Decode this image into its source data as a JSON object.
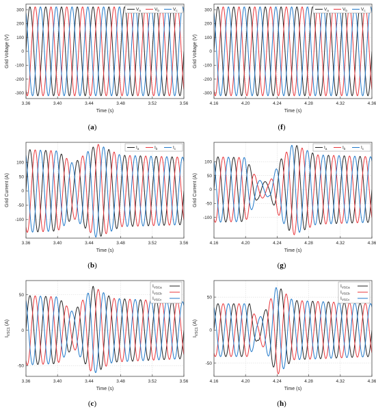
{
  "figure": {
    "panels": [
      {
        "id": "a",
        "caption": "a"
      },
      {
        "id": "f",
        "caption": "f"
      },
      {
        "id": "b",
        "caption": "b"
      },
      {
        "id": "g",
        "caption": "g"
      },
      {
        "id": "c",
        "caption": "c"
      },
      {
        "id": "h",
        "caption": "h"
      }
    ]
  },
  "colors": {
    "phase_a": "#222222",
    "phase_b": "#e8343a",
    "phase_c": "#1f77c8"
  },
  "chart_data": [
    {
      "id": "a",
      "type": "line",
      "title": "",
      "xlabel": "Time (s)",
      "ylabel": "Grid Voltage (V)",
      "xlim": [
        3.36,
        3.56
      ],
      "ylim": [
        -340,
        340
      ],
      "xticks": [
        "3.36",
        "3.40",
        "3.44",
        "3.48",
        "3.52",
        "3.56"
      ],
      "yticks": [
        "-300",
        "-200",
        "-100",
        "0",
        "100",
        "200",
        "300"
      ],
      "grid": true,
      "legend_position": "top-right",
      "legend": [
        {
          "base": "V",
          "sub": "a"
        },
        {
          "base": "V",
          "sub": "b"
        },
        {
          "base": "V",
          "sub": "c"
        }
      ],
      "frequency_hz": 50,
      "series": [
        {
          "phase": "a",
          "amplitude": 320,
          "phase_deg": 0
        },
        {
          "phase": "b",
          "amplitude": 320,
          "phase_deg": -120
        },
        {
          "phase": "c",
          "amplitude": 320,
          "phase_deg": 120
        }
      ]
    },
    {
      "id": "f",
      "type": "line",
      "title": "",
      "xlabel": "Time (s)",
      "ylabel": "Grid Voltage (V)",
      "xlim": [
        4.16,
        4.36
      ],
      "ylim": [
        -340,
        340
      ],
      "xticks": [
        "4.16",
        "4.20",
        "4.24",
        "4.28",
        "4.32",
        "4.36"
      ],
      "yticks": [
        "-300",
        "-200",
        "-100",
        "0",
        "100",
        "200",
        "300"
      ],
      "grid": true,
      "legend_position": "top-right",
      "legend": [
        {
          "base": "V",
          "sub": "a"
        },
        {
          "base": "V",
          "sub": "b"
        },
        {
          "base": "V",
          "sub": "c"
        }
      ],
      "frequency_hz": 50,
      "series": [
        {
          "phase": "a",
          "amplitude": 320,
          "phase_deg": 0
        },
        {
          "phase": "b",
          "amplitude": 320,
          "phase_deg": -120
        },
        {
          "phase": "c",
          "amplitude": 320,
          "phase_deg": 120
        }
      ]
    },
    {
      "id": "b",
      "type": "line",
      "title": "",
      "xlabel": "Time (s)",
      "ylabel": "Grid Current (A)",
      "xlim": [
        3.36,
        3.56
      ],
      "ylim": [
        -165,
        170
      ],
      "xticks": [
        "3.36",
        "3.40",
        "3.44",
        "3.48",
        "3.52",
        "3.56"
      ],
      "yticks": [
        "-100",
        "-50",
        "0",
        "50",
        "100"
      ],
      "grid": true,
      "legend_position": "top-right",
      "legend": [
        {
          "base": "I",
          "sub": "a"
        },
        {
          "base": "I",
          "sub": "b"
        },
        {
          "base": "I",
          "sub": "c"
        }
      ],
      "frequency_hz": 50,
      "amplitude_envelope": {
        "t": [
          3.36,
          3.4,
          3.42,
          3.45,
          3.48,
          3.56
        ],
        "amp": [
          145,
          140,
          95,
          165,
          125,
          118
        ]
      },
      "series": [
        {
          "phase": "a",
          "phase_deg": 0
        },
        {
          "phase": "b",
          "phase_deg": -120
        },
        {
          "phase": "c",
          "phase_deg": 120
        }
      ]
    },
    {
      "id": "g",
      "type": "line",
      "title": "",
      "xlabel": "Time (s)",
      "ylabel": "Grid Current (A)",
      "xlim": [
        4.16,
        4.36
      ],
      "ylim": [
        -175,
        170
      ],
      "xticks": [
        "4.16",
        "4.20",
        "4.24",
        "4.28",
        "4.32",
        "4.36"
      ],
      "yticks": [
        "-100",
        "-50",
        "0",
        "50",
        "100"
      ],
      "grid": true,
      "legend_position": "top-right",
      "legend": [
        {
          "base": "I",
          "sub": "a"
        },
        {
          "base": "I",
          "sub": "b"
        },
        {
          "base": "I",
          "sub": "c"
        }
      ],
      "frequency_hz": 50,
      "amplitude_envelope": {
        "t": [
          4.16,
          4.2,
          4.215,
          4.23,
          4.245,
          4.26,
          4.29,
          4.36
        ],
        "amp": [
          118,
          115,
          35,
          25,
          110,
          165,
          125,
          118
        ]
      },
      "series": [
        {
          "phase": "a",
          "phase_deg": 0
        },
        {
          "phase": "b",
          "phase_deg": -120
        },
        {
          "phase": "c",
          "phase_deg": 120
        }
      ]
    },
    {
      "id": "c",
      "type": "line",
      "title": "",
      "xlabel": "Time (s)",
      "ylabel": "I_VSC1 (A)",
      "xlim": [
        3.36,
        3.56
      ],
      "ylim": [
        -65,
        70
      ],
      "xticks": [
        "3.36",
        "3.40",
        "3.44",
        "3.48",
        "3.52",
        "3.56"
      ],
      "yticks": [
        "-50",
        "0",
        "50"
      ],
      "grid": true,
      "legend_position": "top-right",
      "legend": [
        {
          "base": "I",
          "sub": "VSCa"
        },
        {
          "base": "I",
          "sub": "VSCb"
        },
        {
          "base": "I",
          "sub": "VSCc"
        }
      ],
      "frequency_hz": 50,
      "amplitude_envelope": {
        "t": [
          3.36,
          3.4,
          3.42,
          3.445,
          3.47,
          3.56
        ],
        "amp": [
          49,
          47,
          25,
          62,
          45,
          40
        ]
      },
      "series": [
        {
          "phase": "a",
          "phase_deg": 0
        },
        {
          "phase": "b",
          "phase_deg": -120
        },
        {
          "phase": "c",
          "phase_deg": 120
        }
      ]
    },
    {
      "id": "h",
      "type": "line",
      "title": "",
      "xlabel": "Time (s)",
      "ylabel": "I_VSC1 (A)",
      "xlim": [
        4.16,
        4.36
      ],
      "ylim": [
        -70,
        75
      ],
      "xticks": [
        "4.16",
        "4.20",
        "4.24",
        "4.28",
        "4.32",
        "4.36"
      ],
      "yticks": [
        "-50",
        "0",
        "50"
      ],
      "grid": true,
      "legend_position": "top-right",
      "legend": [
        {
          "base": "I",
          "sub": "VSCa"
        },
        {
          "base": "I",
          "sub": "VSCb"
        },
        {
          "base": "I",
          "sub": "VSCc"
        }
      ],
      "frequency_hz": 50,
      "amplitude_envelope": {
        "t": [
          4.16,
          4.205,
          4.215,
          4.225,
          4.24,
          4.26,
          4.36
        ],
        "amp": [
          40,
          40,
          15,
          30,
          68,
          45,
          40
        ]
      },
      "series": [
        {
          "phase": "a",
          "phase_deg": 0
        },
        {
          "phase": "b",
          "phase_deg": -120
        },
        {
          "phase": "c",
          "phase_deg": 120
        }
      ]
    }
  ]
}
